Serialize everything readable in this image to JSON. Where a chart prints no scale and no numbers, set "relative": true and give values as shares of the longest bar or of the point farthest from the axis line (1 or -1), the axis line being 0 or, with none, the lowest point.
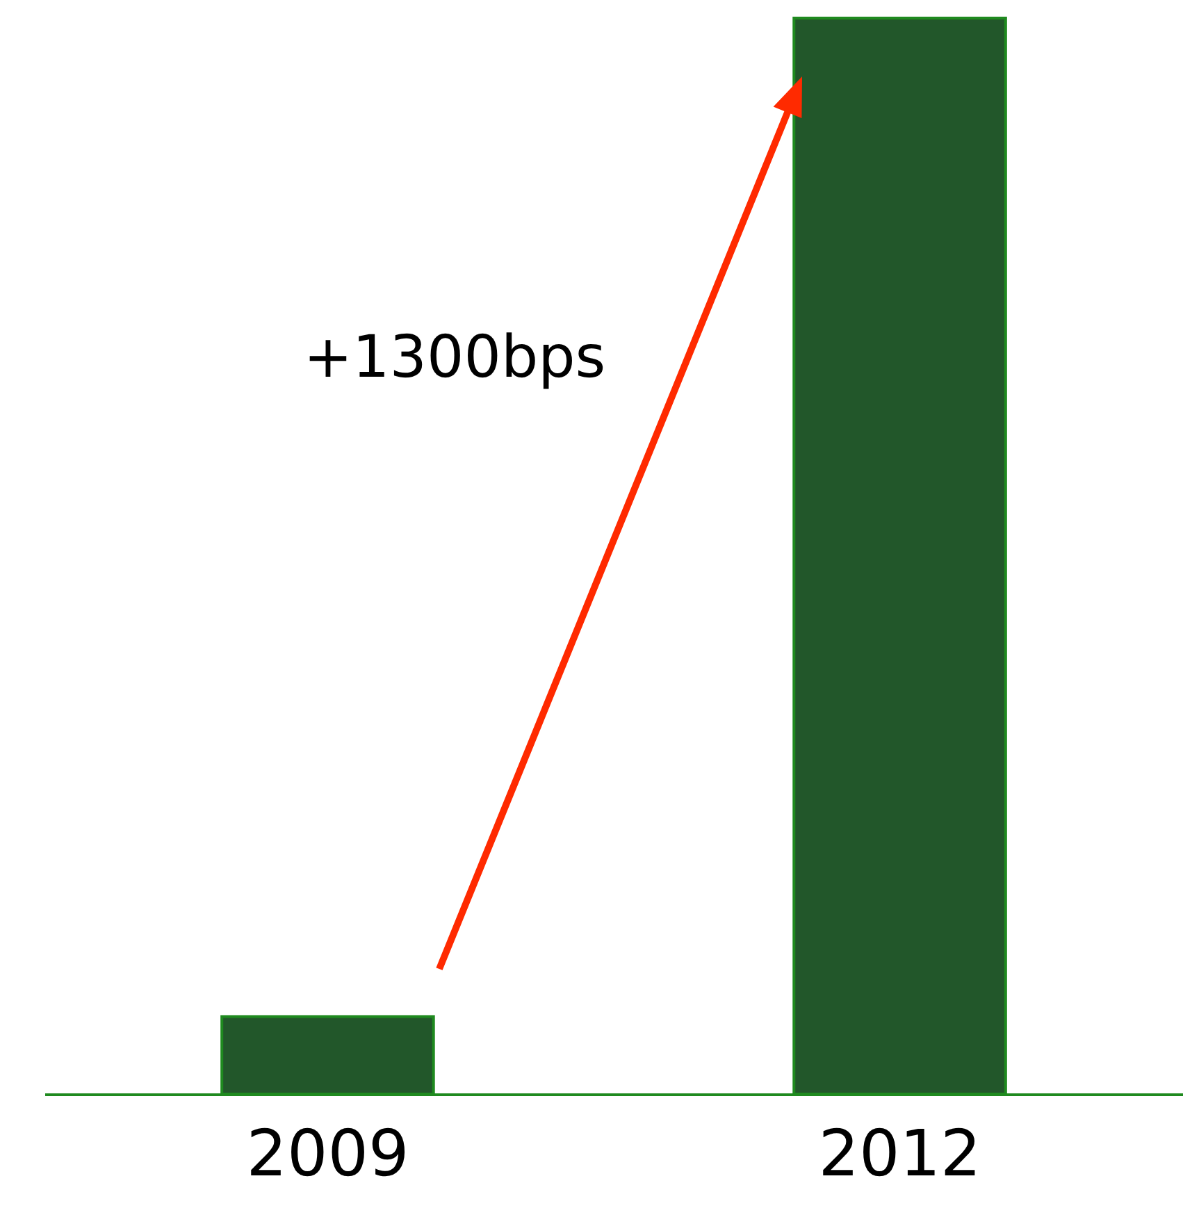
{
  "chart_data": {
    "type": "bar",
    "relative": true,
    "categories": [
      "2009",
      "2012"
    ],
    "values": [
      0.072,
      1
    ],
    "color": "#22572a",
    "annotations": [
      "+1300bps"
    ]
  }
}
